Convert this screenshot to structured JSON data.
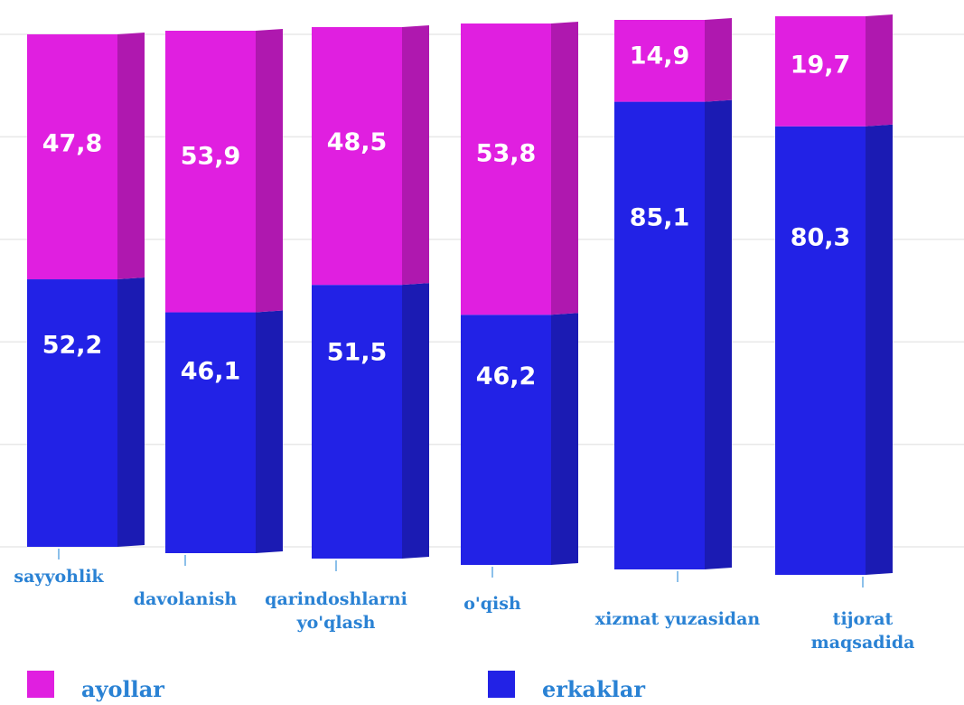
{
  "chart_data": {
    "type": "stacked_bar",
    "categories": [
      "sayyohlik",
      "davolanish",
      "qarindoshlarni\nyo'qlash",
      "o'qish",
      "xizmat yuzasidan",
      "tijorat maqsadida"
    ],
    "series": [
      {
        "name": "ayollar",
        "color": "#e01fe0",
        "values": [
          47.8,
          53.9,
          48.5,
          53.8,
          14.9,
          19.7
        ],
        "value_labels": [
          "47,8",
          "53,9",
          "48,5",
          "53,8",
          "14,9",
          "19,7"
        ]
      },
      {
        "name": "erkaklar",
        "color": "#2222e6",
        "values": [
          52.2,
          46.1,
          51.5,
          46.2,
          85.1,
          80.3
        ],
        "value_labels": [
          "52,2",
          "46,1",
          "51,5",
          "46,2",
          "85,1",
          "80,3"
        ]
      }
    ],
    "ylim": [
      0,
      100
    ],
    "yticks": [
      0,
      20,
      40,
      60,
      80,
      100
    ],
    "grid": true
  }
}
